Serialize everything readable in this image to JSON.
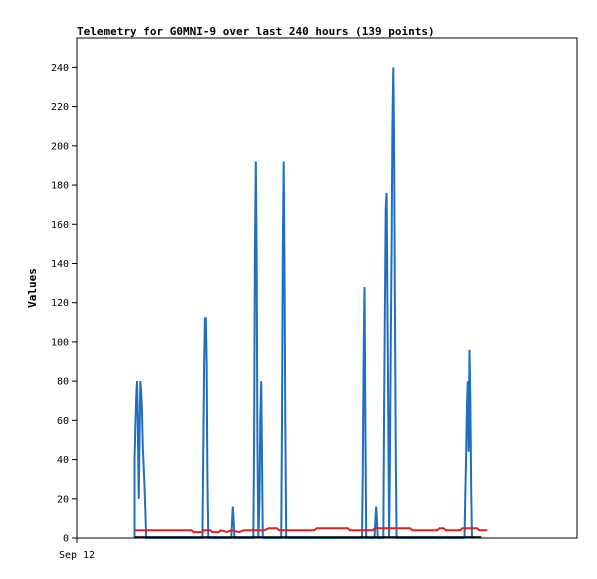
{
  "chart_data": {
    "type": "line",
    "title": "Telemetry for G0MNI-9 over last 240 hours (139 points)",
    "xlabel": "",
    "ylabel": "Values",
    "x_tick_labels": [
      "Sep 12"
    ],
    "xlim": [
      0,
      240
    ],
    "ylim": [
      0,
      255
    ],
    "y_ticks": [
      0,
      20,
      40,
      60,
      80,
      100,
      120,
      140,
      160,
      180,
      200,
      220,
      240
    ],
    "grid": false,
    "legend": "none",
    "series": [
      {
        "color": "#1f6fc0",
        "points": [
          [
            27.6,
            0
          ],
          [
            27.6,
            40
          ],
          [
            28.0,
            56
          ],
          [
            28.4,
            72
          ],
          [
            28.8,
            80
          ],
          [
            29.2,
            60
          ],
          [
            29.6,
            20
          ],
          [
            30.0,
            50
          ],
          [
            30.4,
            80
          ],
          [
            30.8,
            74
          ],
          [
            31.2,
            64
          ],
          [
            31.6,
            46
          ],
          [
            32.0,
            36
          ],
          [
            32.4,
            26
          ],
          [
            32.8,
            14
          ],
          [
            33.2,
            0
          ],
          [
            60.2,
            0
          ],
          [
            60.6,
            48
          ],
          [
            61.0,
            88
          ],
          [
            61.4,
            112
          ],
          [
            61.8,
            112
          ],
          [
            62.2,
            90
          ],
          [
            62.6,
            30
          ],
          [
            63.0,
            0
          ],
          [
            74.0,
            0
          ],
          [
            74.4,
            8
          ],
          [
            74.8,
            16
          ],
          [
            75.2,
            8
          ],
          [
            75.6,
            0
          ],
          [
            84.6,
            0
          ],
          [
            85.0,
            50
          ],
          [
            85.4,
            145
          ],
          [
            85.8,
            192
          ],
          [
            86.2,
            145
          ],
          [
            86.6,
            50
          ],
          [
            87.0,
            0
          ],
          [
            87.6,
            20
          ],
          [
            88.0,
            60
          ],
          [
            88.4,
            80
          ],
          [
            88.8,
            40
          ],
          [
            89.2,
            0
          ],
          [
            98.0,
            0
          ],
          [
            98.4,
            60
          ],
          [
            98.8,
            145
          ],
          [
            99.2,
            192
          ],
          [
            99.6,
            138
          ],
          [
            100.0,
            60
          ],
          [
            100.4,
            0
          ],
          [
            136.8,
            0
          ],
          [
            137.2,
            34
          ],
          [
            137.6,
            96
          ],
          [
            138.0,
            128
          ],
          [
            138.4,
            64
          ],
          [
            138.8,
            0
          ],
          [
            142.8,
            0
          ],
          [
            143.2,
            8
          ],
          [
            143.6,
            16
          ],
          [
            144.0,
            8
          ],
          [
            144.4,
            0
          ],
          [
            147.0,
            0
          ],
          [
            147.4,
            68
          ],
          [
            147.8,
            118
          ],
          [
            148.2,
            168
          ],
          [
            148.6,
            176
          ],
          [
            149.0,
            120
          ],
          [
            149.4,
            60
          ],
          [
            149.8,
            0
          ],
          [
            150.2,
            40
          ],
          [
            150.6,
            100
          ],
          [
            151.0,
            148
          ],
          [
            151.4,
            210
          ],
          [
            151.8,
            240
          ],
          [
            152.2,
            200
          ],
          [
            152.6,
            120
          ],
          [
            153.0,
            40
          ],
          [
            153.4,
            0
          ],
          [
            186.0,
            0
          ],
          [
            186.4,
            22
          ],
          [
            186.8,
            44
          ],
          [
            187.2,
            68
          ],
          [
            187.6,
            80
          ],
          [
            188.0,
            44
          ],
          [
            188.4,
            96
          ],
          [
            188.8,
            72
          ],
          [
            189.2,
            24
          ],
          [
            189.6,
            0
          ]
        ]
      },
      {
        "color": "#e02020",
        "points": [
          [
            27.6,
            4
          ],
          [
            55.0,
            4
          ],
          [
            56.0,
            3
          ],
          [
            60.0,
            3
          ],
          [
            61.0,
            4
          ],
          [
            64.0,
            4
          ],
          [
            65.0,
            3
          ],
          [
            68.0,
            3
          ],
          [
            69.0,
            4
          ],
          [
            72.0,
            3
          ],
          [
            74.0,
            4
          ],
          [
            78.0,
            3
          ],
          [
            80.0,
            4
          ],
          [
            84.0,
            4
          ],
          [
            90.0,
            4
          ],
          [
            92.0,
            5
          ],
          [
            96.0,
            5
          ],
          [
            97.0,
            4
          ],
          [
            114.0,
            4
          ],
          [
            115.0,
            5
          ],
          [
            130.0,
            5
          ],
          [
            131.0,
            4
          ],
          [
            142.0,
            4
          ],
          [
            143.0,
            5
          ],
          [
            160.0,
            5
          ],
          [
            161.0,
            4
          ],
          [
            173.0,
            4
          ],
          [
            174.0,
            5
          ],
          [
            176.0,
            5
          ],
          [
            177.0,
            4
          ],
          [
            184.0,
            4
          ],
          [
            185.0,
            5
          ],
          [
            192.0,
            5
          ],
          [
            193.0,
            4
          ],
          [
            197.0,
            4
          ]
        ]
      },
      {
        "color": "#000000",
        "points": [
          [
            27.6,
            0.4
          ],
          [
            194.0,
            0.4
          ]
        ]
      }
    ]
  }
}
